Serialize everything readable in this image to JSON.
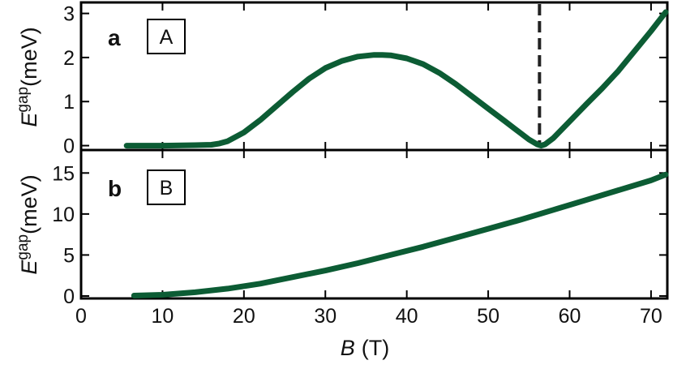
{
  "chart_data": [
    {
      "type": "line",
      "panel_letter": "a",
      "panel_tag": "A",
      "ylabel": {
        "main": "E",
        "sup": "gap",
        "unit": "(meV)"
      },
      "xlim": [
        0,
        72
      ],
      "ylim": [
        -0.1,
        3.25
      ],
      "yticks": [
        0,
        1,
        2,
        3
      ],
      "yticks_text": [
        "0",
        "1",
        "2",
        "3"
      ],
      "color": "#0c5c34",
      "series": [
        {
          "x": [
            5.6,
            10,
            14,
            16,
            17,
            18,
            20,
            22,
            24,
            26,
            28,
            30,
            32,
            34,
            36,
            37,
            38,
            40,
            42,
            44,
            46,
            48,
            50,
            52,
            54,
            55,
            56,
            56.5,
            57,
            58,
            60,
            62,
            64,
            66,
            68,
            70,
            72
          ],
          "y": [
            0.0,
            0.0,
            0.01,
            0.02,
            0.05,
            0.1,
            0.3,
            0.58,
            0.9,
            1.22,
            1.52,
            1.76,
            1.92,
            2.02,
            2.06,
            2.06,
            2.05,
            1.98,
            1.85,
            1.65,
            1.4,
            1.12,
            0.84,
            0.56,
            0.28,
            0.14,
            0.03,
            0.0,
            0.03,
            0.17,
            0.55,
            0.93,
            1.3,
            1.7,
            2.15,
            2.6,
            3.03
          ]
        }
      ],
      "vline": {
        "x": 56.3,
        "style": "dashed"
      }
    },
    {
      "type": "line",
      "panel_letter": "b",
      "panel_tag": "B",
      "ylabel": {
        "main": "E",
        "sup": "gap",
        "unit": "(meV)"
      },
      "xlabel": {
        "main": "B",
        "unit": "(T)"
      },
      "xlim": [
        0,
        72
      ],
      "ylim": [
        -0.3,
        17.8
      ],
      "xticks": [
        0,
        10,
        20,
        30,
        40,
        50,
        60,
        70
      ],
      "xticks_text": [
        "0",
        "10",
        "20",
        "30",
        "40",
        "50",
        "60",
        "70"
      ],
      "yticks": [
        0,
        5,
        10,
        15
      ],
      "yticks_text": [
        "0",
        "5",
        "10",
        "15"
      ],
      "color": "#0c5c34",
      "series": [
        {
          "x": [
            6.5,
            10,
            14,
            18,
            22,
            26,
            30,
            34,
            38,
            42,
            46,
            50,
            54,
            58,
            62,
            66,
            70,
            72
          ],
          "y": [
            0.05,
            0.15,
            0.45,
            0.9,
            1.5,
            2.3,
            3.1,
            4.0,
            5.0,
            6.0,
            7.1,
            8.2,
            9.3,
            10.5,
            11.7,
            12.9,
            14.1,
            14.8
          ]
        }
      ]
    }
  ]
}
